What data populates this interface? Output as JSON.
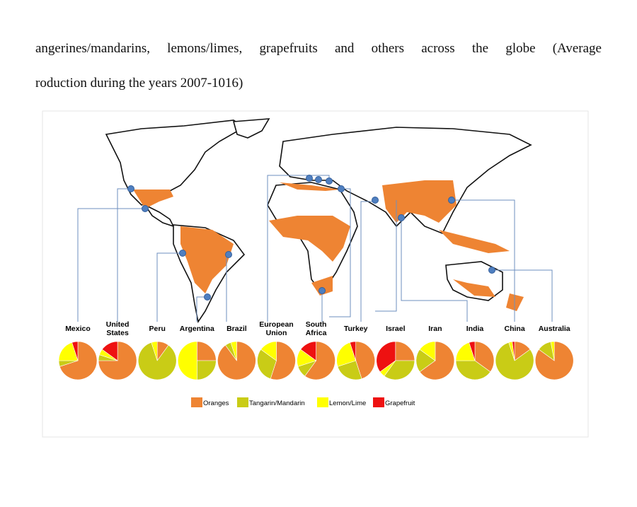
{
  "paragraph": {
    "lines": [
      "angerines/mandarins, lemons/limes, grapefruits and others across the globe (Average",
      "roduction during the years 2007-1016)"
    ]
  },
  "chart_data": {
    "type": "pie",
    "categories": [
      "Mexico",
      "United States",
      "Peru",
      "Argentina",
      "Brazil",
      "European Union",
      "South Africa",
      "Turkey",
      "Israel",
      "Iran",
      "India",
      "China",
      "Australia"
    ],
    "series": [
      {
        "name": "Oranges",
        "color": "#ee8433",
        "values": [
          70,
          75,
          10,
          25,
          90,
          55,
          60,
          45,
          25,
          65,
          35,
          15,
          85
        ]
      },
      {
        "name": "Tangarin/Mandarin",
        "color": "#c9cc16",
        "values": [
          5,
          5,
          85,
          25,
          5,
          30,
          10,
          25,
          35,
          20,
          40,
          80,
          12
        ]
      },
      {
        "name": "Lemon/Lime",
        "color": "#ffff00",
        "values": [
          20,
          5,
          5,
          50,
          5,
          15,
          15,
          25,
          5,
          15,
          20,
          3,
          3
        ]
      },
      {
        "name": "Grapefruit",
        "color": "#ee1111",
        "values": [
          5,
          15,
          0,
          0,
          0,
          0,
          15,
          5,
          35,
          0,
          5,
          2,
          0
        ]
      }
    ]
  }
}
